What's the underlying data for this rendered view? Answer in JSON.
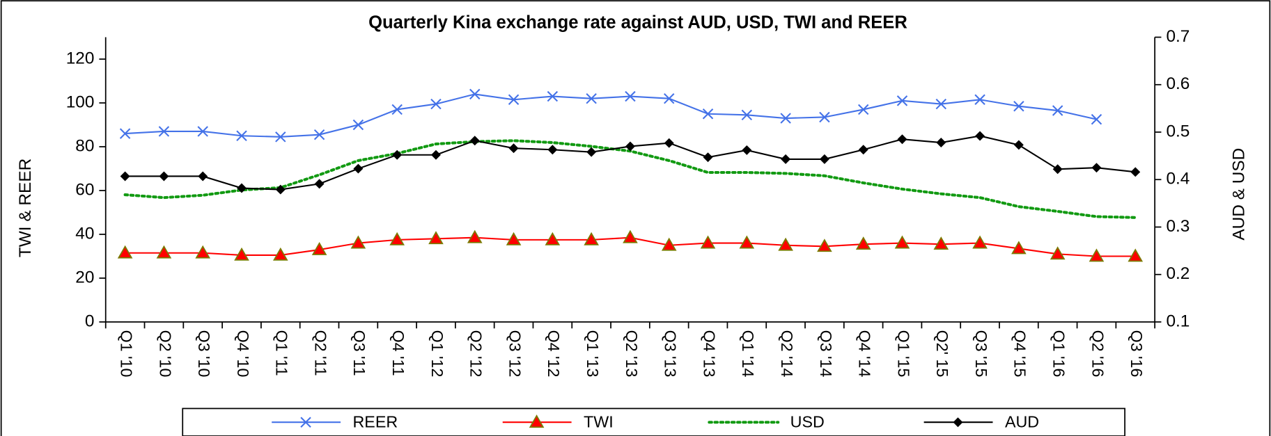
{
  "chart_data": {
    "type": "line",
    "title": "Quarterly Kina exchange rate against AUD,  USD, TWI and REER",
    "ylabel": "TWI & REER",
    "y2label": "AUD & USD",
    "categories": [
      "Q1 '10",
      "Q2 '10",
      "Q3 '10",
      "Q4 '10",
      "Q1 '11",
      "Q2 '11",
      "Q3 '11",
      "Q4 '11",
      "Q1 '12",
      "Q2 '12",
      "Q3 '12",
      "Q4 '12",
      "Q1 '13",
      "Q2 '13",
      "Q3 '13",
      "Q4 '13",
      "Q1 '14",
      "Q2 '14",
      "Q3 '14",
      "Q4 '14",
      "Q1 '15",
      "Q2' 15",
      "Q3 '15",
      "Q4 '15",
      "Q1 '16",
      "Q2 '16",
      "Q3 '16"
    ],
    "ylim": [
      0,
      130
    ],
    "yticks": [
      0,
      20,
      40,
      60,
      80,
      100,
      120
    ],
    "y2lim": [
      0.1,
      0.7
    ],
    "y2ticks": [
      0.1,
      0.2,
      0.3,
      0.4,
      0.5,
      0.6,
      0.7
    ],
    "legend": "bottom",
    "series": [
      {
        "name": "REER",
        "color": "#4472e8",
        "marker": "x",
        "values": [
          86,
          87,
          87,
          85,
          84.5,
          85.5,
          90,
          97,
          99.5,
          104,
          101.5,
          103,
          102,
          103,
          102,
          95,
          94.5,
          93,
          93.5,
          97,
          101,
          99.5,
          101.5,
          98.5,
          96.5,
          92.5,
          null
        ]
      },
      {
        "name": "TWI",
        "color": "#ff0000",
        "marker": "triangle",
        "values": [
          31.5,
          31.5,
          31.5,
          30.5,
          30.5,
          33,
          36,
          37.5,
          38,
          38.5,
          37.5,
          37.5,
          37.5,
          38.5,
          35,
          36,
          36,
          35,
          34.5,
          35.5,
          36,
          35.5,
          36,
          33.5,
          31,
          30,
          30
        ]
      },
      {
        "name": "USD",
        "color": "#129a12",
        "marker": "none",
        "dashed": true,
        "axis": "y2",
        "values": [
          0.368,
          0.362,
          0.367,
          0.378,
          0.383,
          0.41,
          0.44,
          0.455,
          0.475,
          0.48,
          0.482,
          0.478,
          0.47,
          0.46,
          0.44,
          0.415,
          0.415,
          0.413,
          0.408,
          0.393,
          0.38,
          0.37,
          0.362,
          0.343,
          0.333,
          0.322,
          0.32
        ]
      },
      {
        "name": "AUD",
        "color": "#000000",
        "marker": "diamond",
        "axis": "y2",
        "values": [
          0.407,
          0.407,
          0.407,
          0.382,
          0.379,
          0.391,
          0.423,
          0.452,
          0.452,
          0.482,
          0.466,
          0.463,
          0.458,
          0.47,
          0.477,
          0.447,
          0.462,
          0.443,
          0.443,
          0.463,
          0.485,
          0.478,
          0.492,
          0.473,
          0.422,
          0.425,
          0.416
        ]
      }
    ]
  }
}
